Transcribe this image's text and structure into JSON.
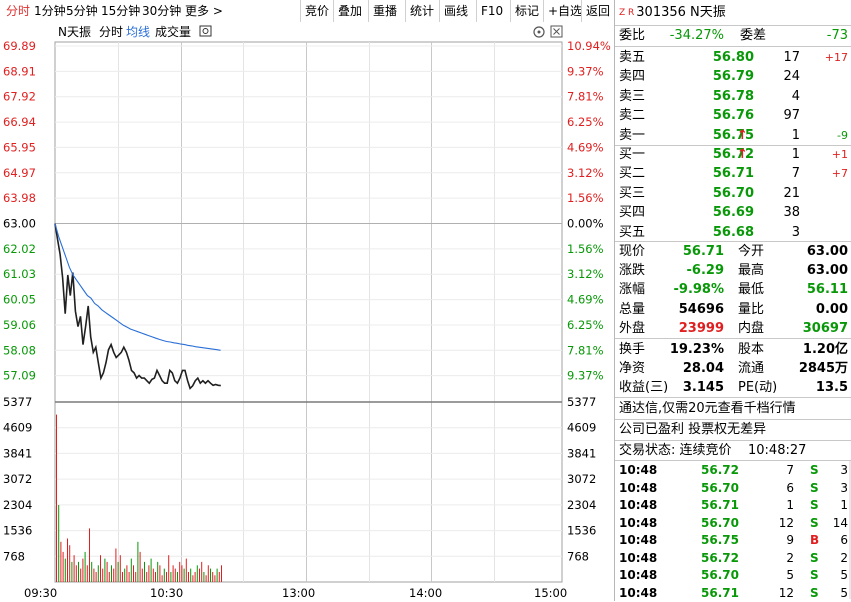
{
  "toolbar": {
    "tabs": [
      "分时",
      "1分钟",
      "5分钟",
      "15分钟",
      "30分钟",
      "更多 >"
    ],
    "actions": [
      "竞价",
      "叠加",
      "重播",
      "统计",
      "画线",
      "F10",
      "标记",
      "+自选",
      "返回"
    ]
  },
  "chart_header": {
    "name": "N天振",
    "items": [
      "分时",
      "均线",
      "成交量"
    ],
    "price_labels": [
      "69.89",
      "68.91",
      "67.92",
      "66.94",
      "65.95",
      "64.97",
      "63.98",
      "63.00",
      "62.02",
      "61.03",
      "60.05",
      "59.06",
      "58.08",
      "57.09"
    ],
    "pct_labels": [
      "10.94%",
      "9.37%",
      "7.81%",
      "6.25%",
      "4.69%",
      "3.12%",
      "1.56%",
      "0.00%",
      "1.56%",
      "3.12%",
      "4.69%",
      "6.25%",
      "7.81%",
      "9.37%"
    ],
    "vol_labels": [
      "5377",
      "4609",
      "3841",
      "3072",
      "2304",
      "1536",
      "768"
    ],
    "time_labels": [
      "09:30",
      "10:30",
      "13:00",
      "14:00",
      "15:00"
    ]
  },
  "chart_data": {
    "type": "line",
    "prev_close": 63.0,
    "ylim": [
      56.11,
      69.89
    ],
    "price_series": [
      {
        "name": "分时",
        "color": "#202020",
        "values": [
          63.0,
          62.4,
          61.8,
          60.9,
          59.5,
          61.0,
          60.2,
          61.1,
          59.6,
          59.0,
          59.4,
          58.3,
          59.0,
          59.8,
          58.6,
          58.0,
          58.2,
          57.6,
          57.0,
          57.2,
          57.6,
          58.1,
          58.3,
          58.0,
          57.8,
          57.9,
          58.0,
          58.2,
          58.0,
          57.7,
          57.3,
          57.2,
          57.0,
          57.1,
          57.0,
          57.0,
          56.9,
          56.8,
          56.95,
          57.0,
          57.3,
          57.1,
          56.9,
          56.8,
          56.8,
          57.3,
          57.2,
          56.9,
          56.8,
          57.0,
          57.3,
          57.3,
          56.9,
          56.6,
          56.7,
          56.9,
          57.0,
          56.8,
          56.9,
          56.8,
          56.9,
          56.8,
          56.72,
          56.75,
          56.72,
          56.71
        ]
      },
      {
        "name": "均线",
        "color": "#2a6fd8",
        "values": [
          63.0,
          62.5,
          62.1,
          61.7,
          61.3,
          61.0,
          60.8,
          60.6,
          60.4,
          60.2,
          60.1,
          59.9,
          59.8,
          59.65,
          59.55,
          59.45,
          59.35,
          59.25,
          59.15,
          59.05,
          58.98,
          58.9,
          58.85,
          58.8,
          58.75,
          58.7,
          58.65,
          58.6,
          58.55,
          58.5,
          58.46,
          58.42,
          58.4,
          58.37,
          58.35,
          58.32,
          58.3,
          58.27,
          58.25,
          58.22,
          58.2,
          58.18,
          58.16,
          58.14,
          58.12,
          58.1,
          58.08
        ]
      }
    ],
    "volume": [
      5000,
      2300,
      1200,
      900,
      700,
      1300,
      1100,
      600,
      800,
      500,
      600,
      400,
      700,
      900,
      500,
      1600,
      600,
      400,
      300,
      500,
      800,
      400,
      700,
      600,
      300,
      500,
      400,
      1000,
      600,
      800,
      300,
      400,
      500,
      300,
      700,
      500,
      300,
      1200,
      900,
      400,
      600,
      300,
      500,
      700,
      400,
      300,
      600,
      500,
      200,
      400,
      300,
      800,
      300,
      500,
      400,
      300,
      600,
      500,
      400,
      700,
      300,
      400,
      200,
      300,
      500,
      400,
      600,
      300,
      200,
      500,
      400,
      300,
      200,
      400,
      300,
      500
    ],
    "vlim": [
      0,
      5377
    ]
  },
  "quote": {
    "code": "301356 N天振",
    "weibi_label": "委比",
    "weibi": "-34.27%",
    "weicha_label": "委差",
    "weicha": "-73",
    "asks": [
      {
        "label": "卖五",
        "price": "56.80",
        "vol": "17",
        "chg": "+17"
      },
      {
        "label": "卖四",
        "price": "56.79",
        "vol": "24",
        "chg": ""
      },
      {
        "label": "卖三",
        "price": "56.78",
        "vol": "4",
        "chg": ""
      },
      {
        "label": "卖二",
        "price": "56.76",
        "vol": "97",
        "chg": ""
      },
      {
        "label": "卖一",
        "price": "56.75",
        "vol": "1",
        "chg": "-9"
      }
    ],
    "bids": [
      {
        "label": "买一",
        "price": "56.72",
        "vol": "1",
        "chg": "+1"
      },
      {
        "label": "买二",
        "price": "56.71",
        "vol": "7",
        "chg": "+7"
      },
      {
        "label": "买三",
        "price": "56.70",
        "vol": "21",
        "chg": ""
      },
      {
        "label": "买四",
        "price": "56.69",
        "vol": "38",
        "chg": ""
      },
      {
        "label": "买五",
        "price": "56.68",
        "vol": "3",
        "chg": ""
      }
    ],
    "stats": [
      {
        "l1": "现价",
        "v1": "56.71",
        "l2": "今开",
        "v2": "63.00",
        "c1": "green",
        "c2": "black"
      },
      {
        "l1": "涨跌",
        "v1": "-6.29",
        "l2": "最高",
        "v2": "63.00",
        "c1": "green",
        "c2": "black"
      },
      {
        "l1": "涨幅",
        "v1": "-9.98%",
        "l2": "最低",
        "v2": "56.11",
        "c1": "green",
        "c2": "green"
      },
      {
        "l1": "总量",
        "v1": "54696",
        "l2": "量比",
        "v2": "0.00",
        "c1": "black",
        "c2": "black"
      },
      {
        "l1": "外盘",
        "v1": "23999",
        "l2": "内盘",
        "v2": "30697",
        "c1": "red",
        "c2": "green"
      },
      {
        "l1": "换手",
        "v1": "19.23%",
        "l2": "股本",
        "v2": "1.20亿",
        "c1": "black",
        "c2": "black"
      },
      {
        "l1": "净资",
        "v1": "28.04",
        "l2": "流通",
        "v2": "2845万",
        "c1": "black",
        "c2": "black"
      },
      {
        "l1": "收益(三)",
        "v1": "3.145",
        "l2": "PE(动)",
        "v2": "13.5",
        "c1": "black",
        "c2": "black"
      }
    ],
    "promo": "通达信,仅需20元查看千档行情",
    "notice": "公司已盈利 投票权无差异",
    "status_label": "交易状态: 连续竞价",
    "status_time": "10:48:27",
    "ticks": [
      {
        "t": "10:48",
        "p": "56.72",
        "v": "7",
        "s": "S",
        "n": "3"
      },
      {
        "t": "10:48",
        "p": "56.70",
        "v": "6",
        "s": "S",
        "n": "3"
      },
      {
        "t": "10:48",
        "p": "56.71",
        "v": "1",
        "s": "S",
        "n": "1"
      },
      {
        "t": "10:48",
        "p": "56.70",
        "v": "12",
        "s": "S",
        "n": "14"
      },
      {
        "t": "10:48",
        "p": "56.75",
        "v": "9",
        "s": "B",
        "n": "6"
      },
      {
        "t": "10:48",
        "p": "56.72",
        "v": "2",
        "s": "S",
        "n": "2"
      },
      {
        "t": "10:48",
        "p": "56.70",
        "v": "5",
        "s": "S",
        "n": "5"
      },
      {
        "t": "10:48",
        "p": "56.71",
        "v": "12",
        "s": "S",
        "n": "5"
      }
    ]
  }
}
